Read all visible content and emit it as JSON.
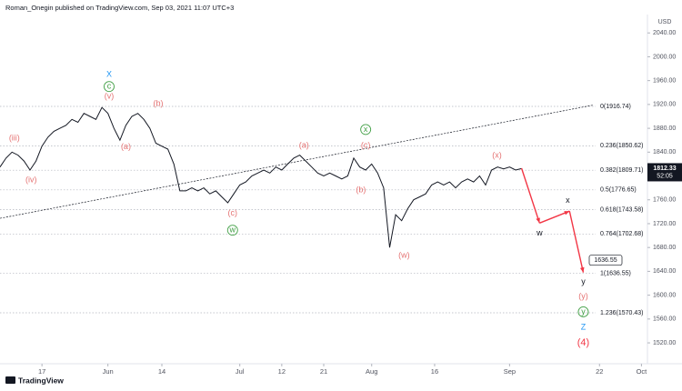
{
  "header": "Roman_Onegin published on TradingView.com, Sep 03, 2021 11:07 UTC+3",
  "footer": "TradingView",
  "currency": "USD",
  "countdown": "52:05",
  "chart_data": {
    "type": "line",
    "series": [
      {
        "name": "Gold",
        "color": "#131722",
        "x": [
          0,
          1,
          2,
          3,
          4,
          5,
          6,
          7,
          8,
          9,
          10,
          11,
          12,
          13,
          14,
          15,
          16,
          17,
          18,
          19,
          20,
          21,
          22,
          23,
          24,
          25,
          26,
          27,
          28,
          29,
          30,
          31,
          32,
          33,
          34,
          35,
          36,
          37,
          38,
          39,
          40,
          41,
          42,
          43,
          44,
          45,
          46,
          47,
          48,
          49,
          50,
          51,
          52,
          53,
          54,
          55,
          56,
          57,
          58,
          59,
          60,
          61,
          62,
          63,
          64,
          65,
          66,
          67,
          68,
          69,
          70,
          71,
          72,
          73,
          74,
          75,
          76,
          77,
          78,
          79,
          80,
          81,
          82,
          83,
          84,
          85,
          86,
          87
        ],
        "values": [
          1815,
          1830,
          1840,
          1835,
          1825,
          1810,
          1825,
          1850,
          1865,
          1875,
          1880,
          1885,
          1895,
          1890,
          1905,
          1900,
          1895,
          1915,
          1905,
          1880,
          1860,
          1885,
          1900,
          1905,
          1895,
          1880,
          1855,
          1850,
          1845,
          1820,
          1775,
          1775,
          1780,
          1775,
          1780,
          1770,
          1775,
          1765,
          1755,
          1770,
          1785,
          1790,
          1800,
          1805,
          1810,
          1805,
          1815,
          1810,
          1820,
          1830,
          1835,
          1825,
          1815,
          1805,
          1800,
          1805,
          1800,
          1795,
          1800,
          1830,
          1815,
          1810,
          1820,
          1805,
          1780,
          1680,
          1735,
          1725,
          1745,
          1760,
          1765,
          1770,
          1785,
          1790,
          1785,
          1790,
          1780,
          1790,
          1795,
          1790,
          1800,
          1785,
          1810,
          1815,
          1812,
          1815,
          1810,
          1812.33
        ]
      }
    ],
    "xlim": [
      0,
      108
    ],
    "xticks": [
      {
        "value": 7,
        "label": "17"
      },
      {
        "value": 18,
        "label": "Jun"
      },
      {
        "value": 27,
        "label": "14"
      },
      {
        "value": 40,
        "label": "Jul"
      },
      {
        "value": 47,
        "label": "12"
      },
      {
        "value": 54,
        "label": "21"
      },
      {
        "value": 62,
        "label": "Aug"
      },
      {
        "value": 72.5,
        "label": "16"
      },
      {
        "value": 85,
        "label": "Sep"
      },
      {
        "value": 100,
        "label": "22"
      },
      {
        "value": 107,
        "label": "Oct"
      }
    ],
    "ylim": [
      1485,
      2080
    ],
    "yticks": [
      {
        "value": 1520,
        "label": "1520.00"
      },
      {
        "value": 1560,
        "label": "1560.00"
      },
      {
        "value": 1600,
        "label": "1600.00"
      },
      {
        "value": 1640,
        "label": "1640.00"
      },
      {
        "value": 1680,
        "label": "1680.00"
      },
      {
        "value": 1720,
        "label": "1720.00"
      },
      {
        "value": 1760,
        "label": "1760.00"
      },
      {
        "value": 1800,
        "label": "1800.00"
      },
      {
        "value": 1840,
        "label": "1840.00"
      },
      {
        "value": 1880,
        "label": "1880.00"
      },
      {
        "value": 1920,
        "label": "1920.00"
      },
      {
        "value": 1960,
        "label": "1960.00"
      },
      {
        "value": 2000,
        "label": "2000.00"
      },
      {
        "value": 2040,
        "label": "2040.00"
      }
    ],
    "grid": false,
    "fib_levels": {
      "values": [
        1916.74,
        1850.62,
        1809.71,
        1776.65,
        1743.58,
        1702.68,
        1636.55,
        1570.43
      ],
      "value_labels": [
        "0(1916.74)",
        "0.236(1850.62)",
        "0.382(1809.71)",
        "0.5(1776.65)",
        "0.618(1743.58)",
        "0.764(1702.68)",
        "1(1636.55)",
        "1.236(1570.43)"
      ]
    },
    "trendline": {
      "x": [
        0,
        99
      ],
      "y": [
        1729,
        1919
      ]
    },
    "projection": {
      "color": "#f23645",
      "x": [
        87,
        90,
        95,
        97.3
      ],
      "y": [
        1813,
        1721,
        1741,
        1638
      ]
    },
    "wave_labels": [
      {
        "text": "X",
        "x": 18.2,
        "y": 1970,
        "color": "#2196f3",
        "circled": false
      },
      {
        "text": "c",
        "x": 18.2,
        "y": 1950,
        "color": "#43a047",
        "circled": true
      },
      {
        "text": "(v)",
        "x": 18.2,
        "y": 1933,
        "color": "#e57373",
        "circled": false
      },
      {
        "text": "(b)",
        "x": 26.4,
        "y": 1921,
        "color": "#e57373",
        "circled": false
      },
      {
        "text": "(iii)",
        "x": 2.4,
        "y": 1863,
        "color": "#e57373",
        "circled": false
      },
      {
        "text": "(a)",
        "x": 21,
        "y": 1849,
        "color": "#e57373",
        "circled": false
      },
      {
        "text": "(iv)",
        "x": 5.2,
        "y": 1793,
        "color": "#e57373",
        "circled": false
      },
      {
        "text": "(c)",
        "x": 38.8,
        "y": 1737,
        "color": "#e57373",
        "circled": false
      },
      {
        "text": "w",
        "x": 38.8,
        "y": 1709,
        "color": "#43a047",
        "circled": true
      },
      {
        "text": "(a)",
        "x": 50.7,
        "y": 1851,
        "color": "#e57373",
        "circled": false
      },
      {
        "text": "x",
        "x": 61,
        "y": 1878,
        "color": "#43a047",
        "circled": true
      },
      {
        "text": "(c)",
        "x": 61,
        "y": 1851,
        "color": "#e57373",
        "circled": false
      },
      {
        "text": "(b)",
        "x": 60.2,
        "y": 1776,
        "color": "#e57373",
        "circled": false
      },
      {
        "text": "(x)",
        "x": 82.9,
        "y": 1834,
        "color": "#e57373",
        "circled": false
      },
      {
        "text": "(w)",
        "x": 67.4,
        "y": 1666,
        "color": "#e57373",
        "circled": false
      },
      {
        "text": "x",
        "x": 94.7,
        "y": 1759,
        "color": "#131722",
        "circled": false
      },
      {
        "text": "w",
        "x": 90,
        "y": 1704,
        "color": "#131722",
        "circled": false
      },
      {
        "text": "y",
        "x": 97.3,
        "y": 1622,
        "color": "#131722",
        "circled": false
      },
      {
        "text": "(y)",
        "x": 97.3,
        "y": 1598,
        "color": "#e57373",
        "circled": false
      },
      {
        "text": "y",
        "x": 97.3,
        "y": 1572,
        "color": "#43a047",
        "circled": true
      },
      {
        "text": "Z",
        "x": 97.3,
        "y": 1546,
        "color": "#2196f3",
        "circled": false
      },
      {
        "text": "(4)",
        "x": 97.3,
        "y": 1520,
        "color": "#f23645",
        "circled": false
      }
    ]
  }
}
